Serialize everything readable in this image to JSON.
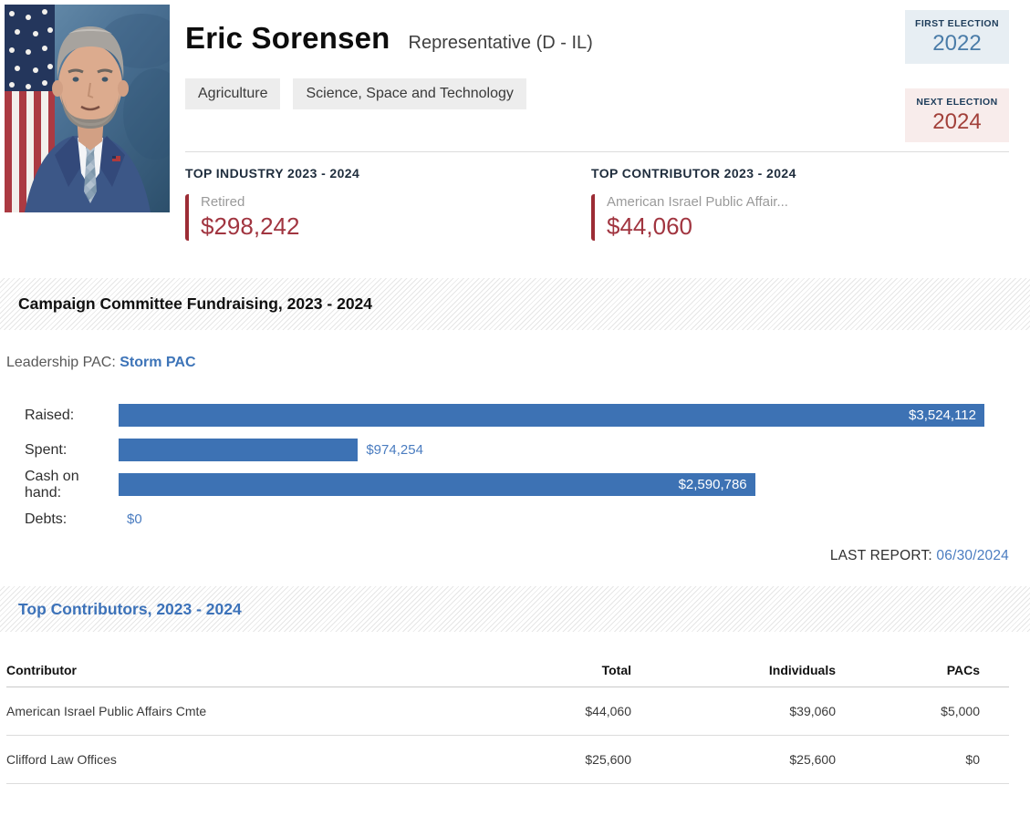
{
  "header": {
    "name": "Eric Sorensen",
    "title": "Representative (D - IL)",
    "committees": [
      "Agriculture",
      "Science, Space and Technology"
    ],
    "first_election": {
      "label": "FIRST ELECTION",
      "year": "2022"
    },
    "next_election": {
      "label": "NEXT ELECTION",
      "year": "2024"
    }
  },
  "top_stats": {
    "industry": {
      "heading": "TOP INDUSTRY 2023 - 2024",
      "name": "Retired",
      "amount": "$298,242"
    },
    "contributor": {
      "heading": "TOP CONTRIBUTOR 2023 - 2024",
      "name": "American Israel Public Affair...",
      "amount": "$44,060"
    }
  },
  "fundraising": {
    "section_title": "Campaign Committee Fundraising, 2023 - 2024",
    "leadership_pac_label": "Leadership PAC:",
    "leadership_pac_link": "Storm PAC",
    "last_report_label": "LAST REPORT:",
    "last_report_date": "06/30/2024"
  },
  "chart_data": {
    "type": "bar",
    "orientation": "horizontal",
    "categories": [
      "Raised:",
      "Spent:",
      "Cash on hand:",
      "Debts:"
    ],
    "values": [
      3524112,
      974254,
      2590786,
      0
    ],
    "value_labels": [
      "$3,524,112",
      "$974,254",
      "$2,590,786",
      "$0"
    ],
    "value_label_inside": [
      true,
      false,
      true,
      false
    ],
    "xlim": [
      0,
      3524112
    ],
    "bar_color": "#3d72b4",
    "grid": false,
    "legend": "none"
  },
  "contributors_table": {
    "section_title": "Top Contributors, 2023 - 2024",
    "columns": [
      "Contributor",
      "Total",
      "Individuals",
      "PACs"
    ],
    "rows": [
      {
        "contributor": "American Israel Public Affairs Cmte",
        "total": "$44,060",
        "individuals": "$39,060",
        "pacs": "$5,000"
      },
      {
        "contributor": "Clifford Law Offices",
        "total": "$25,600",
        "individuals": "$25,600",
        "pacs": "$0"
      }
    ]
  },
  "colors": {
    "accent_red": "#a13540",
    "accent_blue": "#3d74b8",
    "bar_blue": "#3d72b4",
    "navy_heading": "#1f2d3d"
  }
}
